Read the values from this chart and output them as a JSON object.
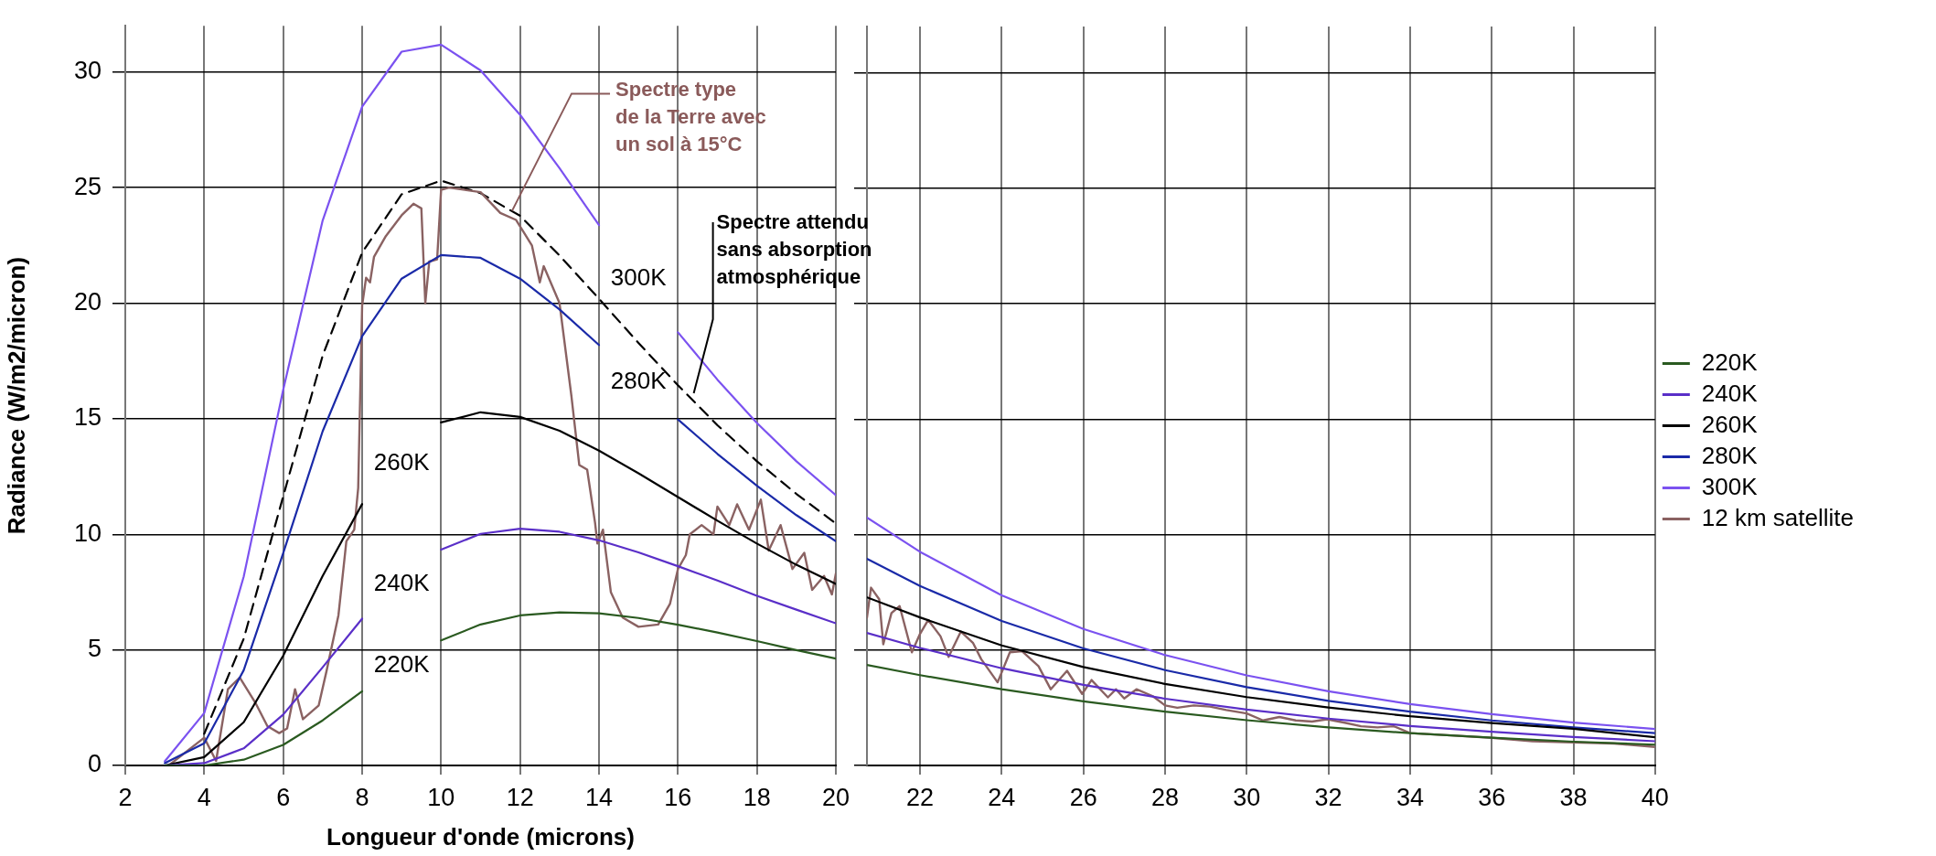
{
  "chart_data": [
    {
      "type": "line",
      "xlabel": "Longueur d'onde (microns)",
      "ylabel": "Radiance (W/m2/micron)",
      "xlim": [
        2,
        20
      ],
      "xticks": [
        2,
        4,
        6,
        8,
        10,
        12,
        14,
        16,
        18,
        20
      ],
      "ylim": [
        0,
        32
      ],
      "yticks": [
        0,
        5,
        10,
        15,
        20,
        25,
        30
      ],
      "grid": true,
      "legend": false,
      "marker": "none",
      "line_style": "solid",
      "series": [
        {
          "name": "220K",
          "color": "#2a5a20",
          "x": [
            3,
            4,
            5,
            6,
            7,
            8,
            9,
            10,
            11,
            12,
            13,
            14,
            15,
            16,
            17,
            18,
            19,
            20
          ],
          "values": [
            0,
            0,
            0.25,
            0.89,
            1.95,
            3.21,
            null,
            5.41,
            6.1,
            6.49,
            6.62,
            6.58,
            6.38,
            6.09,
            5.75,
            5.38,
            4.99,
            4.62
          ]
        },
        {
          "name": "240K",
          "color": "#5a2fc8",
          "x": [
            3,
            4,
            5,
            6,
            7,
            8,
            9,
            10,
            11,
            12,
            13,
            14,
            15,
            16,
            17,
            18,
            19,
            20
          ],
          "values": [
            0,
            0.1,
            0.74,
            2.2,
            4.25,
            6.35,
            null,
            9.34,
            10.02,
            10.24,
            10.11,
            9.74,
            9.22,
            8.62,
            8.0,
            7.34,
            6.74,
            6.15
          ]
        },
        {
          "name": "260K",
          "color": "#000000",
          "x": [
            3,
            4,
            5,
            6,
            7,
            8,
            9,
            10,
            11,
            12,
            13,
            14,
            15,
            16,
            17,
            18,
            19,
            20
          ],
          "values": [
            0,
            0.36,
            1.87,
            4.75,
            8.2,
            11.31,
            null,
            14.84,
            15.28,
            15.08,
            14.48,
            13.62,
            12.64,
            11.61,
            10.59,
            9.6,
            8.68,
            7.85
          ]
        },
        {
          "name": "280K",
          "color": "#1a2aa8",
          "x": [
            3,
            4,
            5,
            6,
            7,
            8,
            9,
            10,
            11,
            12,
            13,
            14,
            15,
            16,
            17,
            18,
            19,
            20
          ],
          "values": [
            0.1,
            0.96,
            4.12,
            9.18,
            14.46,
            18.57,
            21.06,
            22.08,
            21.96,
            21.06,
            19.73,
            18.19,
            null,
            14.97,
            13.48,
            12.1,
            10.83,
            9.7
          ]
        },
        {
          "name": "300K",
          "color": "#7b52f0",
          "x": [
            3,
            4,
            5,
            6,
            7,
            8,
            9,
            10,
            11,
            12,
            13,
            14,
            15,
            16,
            17,
            18,
            19,
            20
          ],
          "values": [
            0.18,
            2.27,
            8.17,
            16.25,
            23.58,
            28.5,
            30.88,
            31.18,
            30.07,
            28.15,
            25.84,
            23.38,
            null,
            18.74,
            16.69,
            14.82,
            13.16,
            11.69
          ]
        },
        {
          "color": "#8a6262",
          "x": [
            3.1,
            4,
            4.3,
            4.6,
            4.9,
            5.3,
            5.6,
            5.9,
            6.1,
            6.3,
            6.5,
            6.9,
            7.1,
            7.4,
            7.6,
            7.8,
            7.9,
            8.0,
            8.1,
            8.2,
            8.3,
            8.6,
            9.0,
            9.3,
            9.5,
            9.6,
            9.7,
            9.9,
            10.0,
            10.2,
            11.0,
            11.5,
            11.9,
            12.3,
            12.5,
            12.6,
            12.8,
            13.0,
            13.3,
            13.5,
            13.7,
            13.9,
            13.96,
            14.1,
            14.3,
            14.6,
            15.0,
            15.5,
            15.8,
            16.0,
            16.2,
            16.3,
            16.6,
            16.9,
            17.0,
            17.3,
            17.5,
            17.8,
            18.1,
            18.3,
            18.6,
            18.9,
            19.2,
            19.4,
            19.7,
            19.9,
            20.0
          ],
          "values": [
            0,
            1.2,
            0.2,
            3.3,
            3.8,
            2.7,
            1.7,
            1.4,
            1.6,
            3.3,
            2.0,
            2.6,
            4.1,
            6.5,
            9.7,
            10.2,
            12.0,
            19.9,
            21.1,
            20.9,
            22.0,
            22.9,
            23.8,
            24.3,
            24.1,
            20.0,
            21.8,
            21.9,
            24.9,
            25.0,
            24.8,
            23.9,
            23.6,
            22.5,
            20.9,
            21.6,
            20.8,
            20.0,
            16.0,
            13.0,
            12.8,
            10.5,
            9.6,
            10.2,
            7.5,
            6.4,
            6.0,
            6.1,
            7.0,
            8.5,
            9.1,
            10.0,
            10.4,
            10.0,
            11.2,
            10.4,
            11.3,
            10.2,
            11.5,
            9.3,
            10.4,
            8.5,
            9.2,
            7.6,
            8.2,
            7.4,
            8.3
          ]
        },
        {
          "color": "#000000",
          "line_style": "dashed",
          "x": [
            4,
            5,
            6,
            7,
            8,
            9,
            10,
            11,
            12,
            13,
            14,
            15,
            16,
            17,
            18,
            19,
            20
          ],
          "values": [
            1.37,
            5.48,
            11.64,
            17.73,
            22.19,
            24.71,
            25.3,
            24.76,
            23.78,
            22.06,
            20.19,
            18.28,
            16.45,
            14.72,
            13.16,
            11.75,
            10.47
          ]
        }
      ],
      "annotations": [
        {
          "text": "Spectre type\nde la Terre avec\nun sol à 15°C",
          "x": 11.8,
          "y": 24
        },
        {
          "text": "Spectre attendu\nsans absorption\natmosphérique",
          "x": 16.4,
          "y": 16.1
        }
      ]
    },
    {
      "type": "line",
      "xlim": [
        20.7,
        40
      ],
      "xticks": [
        22,
        24,
        26,
        28,
        30,
        32,
        34,
        36,
        38,
        40
      ],
      "ylim": [
        0,
        32
      ],
      "yticks": [
        0,
        5,
        10,
        15,
        20,
        25,
        30
      ],
      "grid": true,
      "legend": "right",
      "tick_labels": "x",
      "marker": "none",
      "line_style": "solid",
      "series": [
        {
          "name": "220K",
          "color": "#2a5a20",
          "x": [
            20.7,
            22,
            24,
            26,
            28,
            30,
            32,
            34,
            36,
            38,
            40
          ],
          "values": [
            4.35,
            3.91,
            3.3,
            2.78,
            2.33,
            1.96,
            1.65,
            1.4,
            1.2,
            1.03,
            0.9
          ]
        },
        {
          "name": "240K",
          "color": "#5a2fc8",
          "x": [
            20.7,
            22,
            24,
            26,
            28,
            30,
            32,
            34,
            36,
            38,
            40
          ],
          "values": [
            5.74,
            5.09,
            4.21,
            3.49,
            2.89,
            2.42,
            2.03,
            1.71,
            1.46,
            1.23,
            1.05
          ]
        },
        {
          "name": "260K",
          "color": "#000000",
          "x": [
            20.7,
            22,
            24,
            26,
            28,
            30,
            32,
            34,
            36,
            38,
            40
          ],
          "values": [
            7.28,
            6.41,
            5.2,
            4.26,
            3.53,
            2.96,
            2.51,
            2.13,
            1.84,
            1.59,
            1.22
          ]
        },
        {
          "name": "280K",
          "color": "#1a2aa8",
          "x": [
            20.7,
            22,
            24,
            26,
            28,
            30,
            32,
            34,
            36,
            38,
            40
          ],
          "values": [
            8.95,
            7.77,
            6.26,
            5.07,
            4.13,
            3.39,
            2.8,
            2.33,
            1.95,
            1.65,
            1.4
          ]
        },
        {
          "name": "300K",
          "color": "#7b52f0",
          "x": [
            20.7,
            22,
            24,
            26,
            28,
            30,
            32,
            34,
            36,
            38,
            40
          ],
          "values": [
            10.74,
            9.25,
            7.37,
            5.91,
            4.78,
            3.9,
            3.21,
            2.66,
            2.22,
            1.86,
            1.58
          ]
        },
        {
          "name": "12 km satellite",
          "color": "#8a6262",
          "x": [
            20.7,
            20.8,
            21.0,
            21.1,
            21.3,
            21.5,
            21.8,
            22.0,
            22.2,
            22.5,
            22.7,
            23.0,
            23.3,
            23.5,
            23.9,
            24.2,
            24.5,
            24.9,
            25.2,
            25.6,
            25.97,
            26.2,
            26.6,
            26.8,
            27.0,
            27.3,
            27.7,
            28.0,
            28.3,
            28.7,
            29.1,
            29.5,
            30.0,
            30.4,
            30.8,
            31.2,
            31.6,
            31.97,
            32.4,
            32.8,
            33.2,
            33.6,
            34.0,
            35,
            36,
            37,
            38,
            39,
            40
          ],
          "values": [
            6.4,
            7.7,
            7.2,
            5.25,
            6.6,
            6.9,
            4.9,
            5.7,
            6.3,
            5.6,
            4.7,
            5.8,
            5.3,
            4.6,
            3.6,
            4.9,
            4.95,
            4.3,
            3.3,
            4.1,
            3.1,
            3.7,
            2.95,
            3.3,
            2.9,
            3.3,
            3.0,
            2.6,
            2.5,
            2.6,
            2.55,
            2.4,
            2.25,
            1.95,
            2.1,
            1.95,
            1.9,
            2.0,
            1.85,
            1.7,
            1.65,
            1.7,
            1.4,
            1.3,
            1.2,
            1.05,
            1.0,
            0.95,
            0.8
          ]
        }
      ]
    }
  ]
}
